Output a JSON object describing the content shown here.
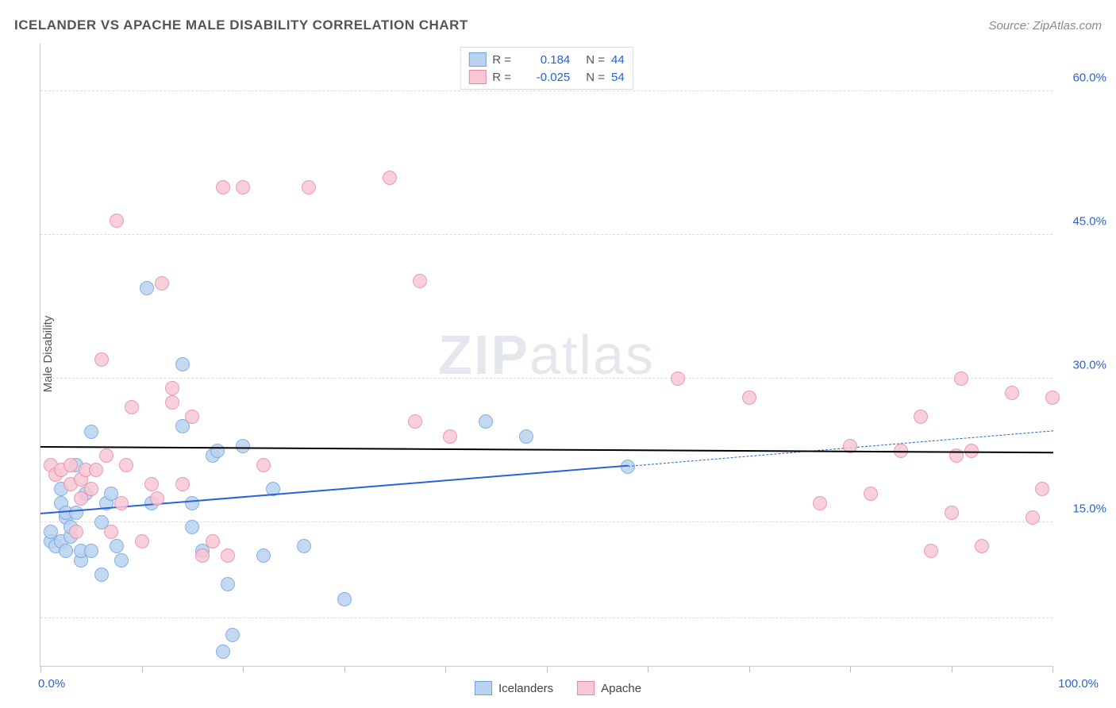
{
  "title": "ICELANDER VS APACHE MALE DISABILITY CORRELATION CHART",
  "source": "Source: ZipAtlas.com",
  "ylabel": "Male Disability",
  "watermark_zip": "ZIP",
  "watermark_atlas": "atlas",
  "chart": {
    "type": "scatter",
    "xlim": [
      0,
      100
    ],
    "ylim": [
      0,
      65
    ],
    "x_ticks": [
      0,
      10,
      20,
      30,
      40,
      50,
      60,
      70,
      80,
      90,
      100
    ],
    "x_tick_labels": {
      "0": "0.0%",
      "100": "100.0%"
    },
    "y_gridlines": [
      5,
      15,
      30,
      45,
      60
    ],
    "y_tick_labels": {
      "15": "15.0%",
      "30": "30.0%",
      "45": "45.0%",
      "60": "60.0%"
    },
    "grid_color": "#dddddd",
    "background_color": "#ffffff",
    "marker_size": 18,
    "series": [
      {
        "name": "Icelanders",
        "fill": "#b9d3f0",
        "stroke": "#6fa3e0",
        "R": "0.184",
        "N": "44",
        "trend": {
          "x1": 0,
          "y1": 15.8,
          "x2": 58,
          "y2": 20.8,
          "x_dash_end": 100,
          "y_dash_end": 24.5,
          "color": "#2962d9",
          "width": 2.5
        },
        "points": [
          [
            1,
            13
          ],
          [
            1,
            14
          ],
          [
            1.5,
            12.5
          ],
          [
            2,
            13
          ],
          [
            2,
            17
          ],
          [
            2,
            18.5
          ],
          [
            2.5,
            12
          ],
          [
            2.5,
            15.5
          ],
          [
            2.5,
            16
          ],
          [
            3,
            13.5
          ],
          [
            3,
            14.5
          ],
          [
            3.5,
            16
          ],
          [
            3.5,
            21
          ],
          [
            4,
            11
          ],
          [
            4,
            12
          ],
          [
            4.5,
            18
          ],
          [
            5,
            12
          ],
          [
            5,
            24.5
          ],
          [
            6,
            9.5
          ],
          [
            6,
            15
          ],
          [
            6.5,
            17
          ],
          [
            7,
            18
          ],
          [
            7.5,
            12.5
          ],
          [
            8,
            11
          ],
          [
            10.5,
            39.5
          ],
          [
            11,
            17
          ],
          [
            14,
            25
          ],
          [
            14,
            31.5
          ],
          [
            15,
            14.5
          ],
          [
            15,
            17
          ],
          [
            16,
            12
          ],
          [
            17,
            22
          ],
          [
            17.5,
            22.5
          ],
          [
            18,
            1.5
          ],
          [
            18.5,
            8.5
          ],
          [
            19,
            3.2
          ],
          [
            20,
            23
          ],
          [
            22,
            11.5
          ],
          [
            23,
            18.5
          ],
          [
            26,
            12.5
          ],
          [
            30,
            7
          ],
          [
            44,
            25.5
          ],
          [
            48,
            24
          ],
          [
            58,
            20.8
          ]
        ]
      },
      {
        "name": "Apache",
        "fill": "#f7c7d4",
        "stroke": "#e88aa5",
        "R": "-0.025",
        "N": "54",
        "trend": {
          "x1": 0,
          "y1": 22.8,
          "x2": 100,
          "y2": 22.2,
          "color": "#e5588",
          "width": 2.5
        },
        "points": [
          [
            1,
            21
          ],
          [
            1.5,
            20
          ],
          [
            2,
            20.5
          ],
          [
            3,
            19
          ],
          [
            3,
            21
          ],
          [
            3.5,
            14
          ],
          [
            4,
            17.5
          ],
          [
            4,
            19.5
          ],
          [
            4.5,
            20.5
          ],
          [
            5,
            18.5
          ],
          [
            5.5,
            20.5
          ],
          [
            6,
            32
          ],
          [
            6.5,
            22
          ],
          [
            7,
            14
          ],
          [
            7.5,
            46.5
          ],
          [
            8,
            17
          ],
          [
            8.5,
            21
          ],
          [
            9,
            27
          ],
          [
            10,
            13
          ],
          [
            11,
            19
          ],
          [
            11.5,
            17.5
          ],
          [
            12,
            40
          ],
          [
            13,
            27.5
          ],
          [
            13,
            29
          ],
          [
            14,
            19
          ],
          [
            15,
            26
          ],
          [
            16,
            11.5
          ],
          [
            17,
            13
          ],
          [
            18,
            50
          ],
          [
            18.5,
            11.5
          ],
          [
            20,
            50
          ],
          [
            22,
            21
          ],
          [
            26.5,
            50
          ],
          [
            34.5,
            51
          ],
          [
            37,
            25.5
          ],
          [
            37.5,
            40.2
          ],
          [
            40.5,
            24
          ],
          [
            63,
            30
          ],
          [
            70,
            28
          ],
          [
            77,
            17
          ],
          [
            80,
            23
          ],
          [
            82,
            18
          ],
          [
            85,
            22.5
          ],
          [
            87,
            26
          ],
          [
            88,
            12
          ],
          [
            90,
            16
          ],
          [
            90.5,
            22
          ],
          [
            91,
            30
          ],
          [
            92,
            22.5
          ],
          [
            93,
            12.5
          ],
          [
            96,
            28.5
          ],
          [
            98,
            15.5
          ],
          [
            99,
            18.5
          ],
          [
            100,
            28
          ]
        ]
      }
    ]
  },
  "legend_top": {
    "R_label": "R =",
    "N_label": "N ="
  },
  "legend_bottom": [
    "Icelanders",
    "Apache"
  ]
}
